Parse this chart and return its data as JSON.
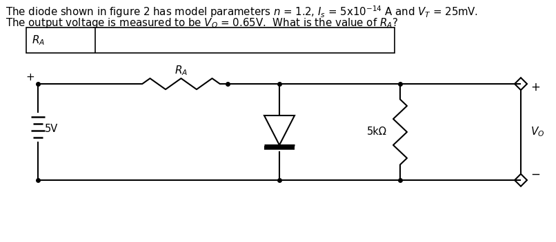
{
  "bg_color": "#ffffff",
  "line_color": "#000000",
  "text_line1_normal": "The diode shown in figure 2 has model parameters ",
  "text_line1_n": "n",
  "text_line1_mid": " = 1.2, ",
  "text_line1_Is": "I",
  "text_line1_s": "s",
  "text_line1_eq": "= 5x10",
  "text_line1_exp": "-14",
  "text_line1_A": " A and ",
  "text_line1_VT": "V",
  "text_line1_T": "T",
  "text_line1_end": "= 25mV.",
  "text_line2_normal": "The output voltage is measured to be ",
  "text_line2_VO": "V",
  "text_line2_O": "O",
  "text_line2_eq": " = 0.65V.  What is the value of ",
  "text_line2_RA": "R",
  "text_line2_A": "A",
  "text_line2_end": "?",
  "box_label": "R_A",
  "circuit_5V": "5V",
  "circuit_RA": "R_A",
  "circuit_5kOhm": "5kΩ",
  "circuit_VO": "V_O",
  "circuit_plus": "+",
  "circuit_minus": "-"
}
